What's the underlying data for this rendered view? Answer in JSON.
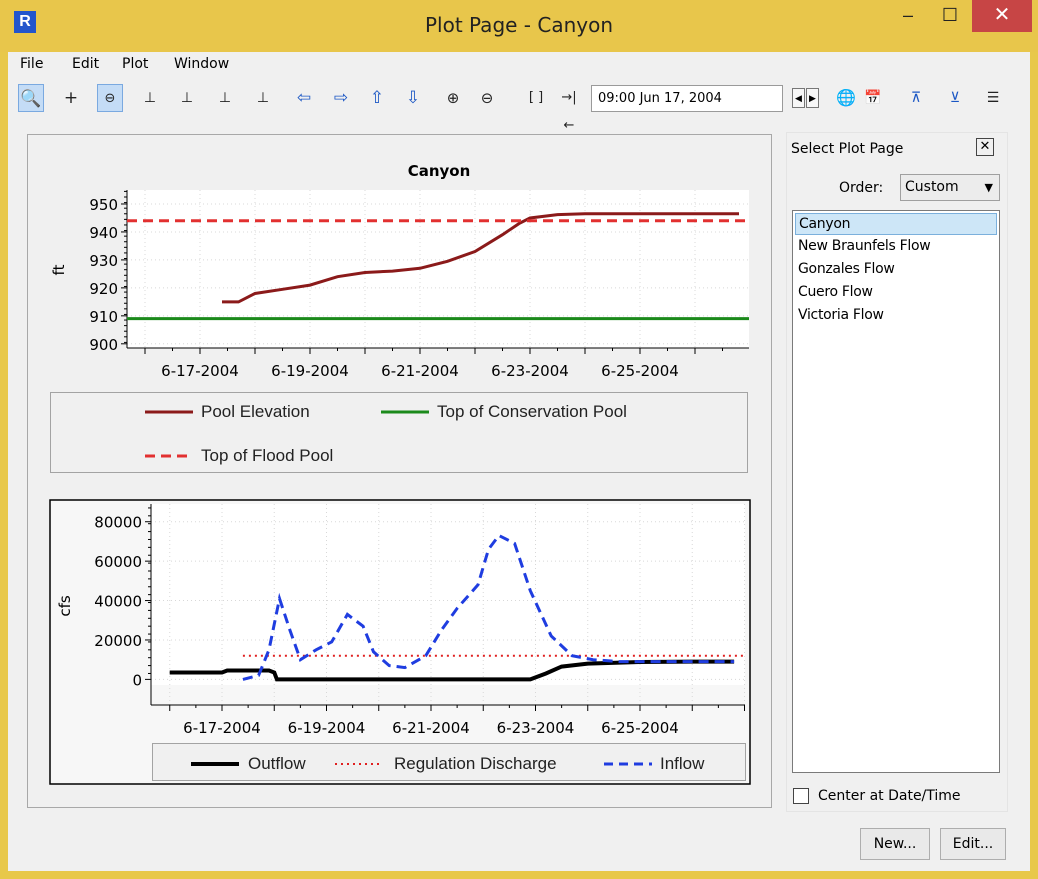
{
  "window": {
    "title": "Plot Page - Canyon",
    "app_icon": "riverware-icon"
  },
  "menu": [
    "File",
    "Edit",
    "Plot",
    "Window"
  ],
  "toolbar": {
    "date_value": "09:00 Jun 17, 2004"
  },
  "side_panel": {
    "title": "Select Plot Page",
    "order_label": "Order:",
    "order_value": "Custom",
    "pages": [
      "Canyon",
      "New Braunfels Flow",
      "Gonzales Flow",
      "Cuero Flow",
      "Victoria Flow"
    ],
    "selected_index": 0,
    "center_label": "Center at Date/Time",
    "center_checked": false,
    "new_label": "New...",
    "edit_label": "Edit..."
  },
  "chart_data": [
    {
      "type": "line",
      "title": "Canyon",
      "ylabel": "ft",
      "ylim": [
        900,
        950
      ],
      "yticks": [
        "950",
        "940",
        "930",
        "920",
        "910",
        "900"
      ],
      "xticks": [
        "6-17-2004",
        "6-19-2004",
        "6-21-2004",
        "6-23-2004",
        "6-25-2004"
      ],
      "xlim": [
        "6-16-2004",
        "6-27-2004"
      ],
      "grid": true,
      "legend_position": "bottom",
      "series": [
        {
          "name": "Pool Elevation",
          "color": "#8b1a1a",
          "style": "solid",
          "x": [
            "6-17.4",
            "6-17.7",
            "6-18",
            "6-18.5",
            "6-19",
            "6-19.5",
            "6-20",
            "6-20.5",
            "6-21",
            "6-21.5",
            "6-22",
            "6-22.5",
            "6-22.8",
            "6-23",
            "6-23.5",
            "6-24",
            "6-25",
            "6-26",
            "6-26.8"
          ],
          "y": [
            915,
            915,
            918,
            919.5,
            921,
            924,
            925.5,
            926,
            927,
            929.5,
            933,
            939,
            943,
            945,
            946.2,
            946.5,
            946.5,
            946.5,
            946.5
          ]
        },
        {
          "name": "Top of Conservation Pool",
          "color": "#1b8a1b",
          "style": "solid",
          "value": 909
        },
        {
          "name": "Top of Flood Pool",
          "color": "#e23030",
          "style": "dashed",
          "value": 944
        }
      ]
    },
    {
      "type": "line",
      "title": "",
      "ylabel": "cfs",
      "ylim": [
        -8000,
        88000
      ],
      "yticks": [
        "80000",
        "60000",
        "40000",
        "20000",
        "0"
      ],
      "xticks": [
        "6-17-2004",
        "6-19-2004",
        "6-21-2004",
        "6-23-2004",
        "6-25-2004"
      ],
      "grid": true,
      "legend_position": "bottom",
      "series": [
        {
          "name": "Outflow",
          "color": "#000000",
          "style": "solid",
          "x": [
            "6-16",
            "6-17",
            "6-17.1",
            "6-17.9",
            "6-18",
            "6-18.05",
            "6-22.9",
            "6-23.2",
            "6-23.5",
            "6-24",
            "6-25",
            "6-26",
            "6-26.8"
          ],
          "y": [
            3500,
            3500,
            4500,
            4500,
            3500,
            0,
            0,
            3000,
            6500,
            8000,
            8800,
            9000,
            9000
          ]
        },
        {
          "name": "Regulation Discharge",
          "color": "#e02020",
          "style": "dotted",
          "x": [
            "6-17.4",
            "6-27"
          ],
          "y": [
            12000,
            12000
          ]
        },
        {
          "name": "Inflow",
          "color": "#1f3de0",
          "style": "dashed",
          "x": [
            "6-17.4",
            "6-17.7",
            "6-17.9",
            "6-18.1",
            "6-18.3",
            "6-18.5",
            "6-18.8",
            "6-19.1",
            "6-19.4",
            "6-19.7",
            "6-19.9",
            "6-20.2",
            "6-20.5",
            "6-20.9",
            "6-21.2",
            "6-21.5",
            "6-21.9",
            "6-22.1",
            "6-22.3",
            "6-22.6",
            "6-22.9",
            "6-23.3",
            "6-23.7",
            "6-24.1",
            "6-24.6",
            "6-25.2",
            "6-26.0",
            "6-26.8"
          ],
          "y": [
            0,
            2000,
            15000,
            41000,
            25000,
            10000,
            15000,
            19000,
            33000,
            27000,
            14000,
            7000,
            6000,
            12000,
            25000,
            36000,
            48000,
            66000,
            73000,
            69000,
            45000,
            22000,
            12000,
            10000,
            9000,
            9000,
            9000,
            9000
          ]
        }
      ]
    }
  ]
}
